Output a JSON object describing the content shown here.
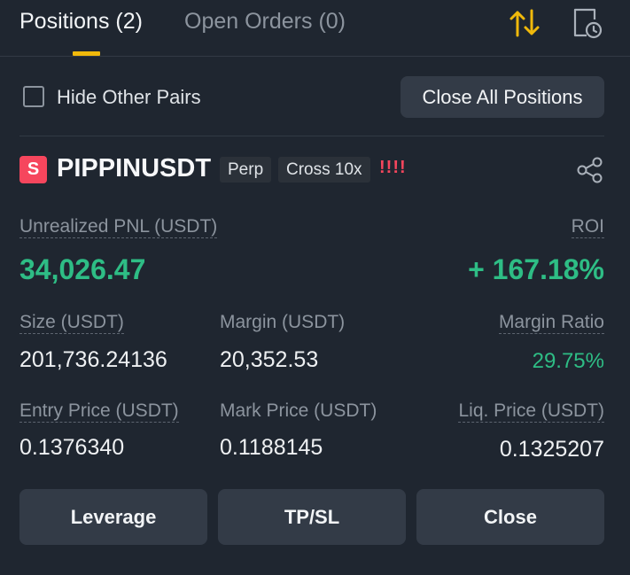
{
  "tabs": {
    "positions_label": "Positions (2)",
    "open_orders_label": "Open Orders (0)"
  },
  "header_icons": {
    "sort": "sort-arrows-icon",
    "history": "order-history-icon",
    "accent_color": "#f0b90b"
  },
  "filter": {
    "hide_other_pairs_label": "Hide Other Pairs",
    "hide_other_pairs_checked": false,
    "close_all_label": "Close All Positions"
  },
  "position": {
    "side_badge": "S",
    "symbol": "PIPPINUSDT",
    "tags": {
      "contract": "Perp",
      "margin_mode": "Cross 10x"
    },
    "risk_indicator": "!!!!",
    "unrealized_pnl_label": "Unrealized PNL (USDT)",
    "unrealized_pnl_value": "34,026.47",
    "roi_label": "ROI",
    "roi_value": "+ 167.18%",
    "size_label": "Size (USDT)",
    "size_value": "201,736.24136",
    "margin_label": "Margin (USDT)",
    "margin_value": "20,352.53",
    "margin_ratio_label": "Margin Ratio",
    "margin_ratio_value": "29.75%",
    "entry_price_label": "Entry Price (USDT)",
    "entry_price_value": "0.1376340",
    "mark_price_label": "Mark Price (USDT)",
    "mark_price_value": "0.1188145",
    "liq_price_label": "Liq. Price (USDT)",
    "liq_price_value": "0.1325207"
  },
  "actions": {
    "leverage_label": "Leverage",
    "tpsl_label": "TP/SL",
    "close_label": "Close"
  },
  "colors": {
    "background": "#1f2630",
    "profit_green": "#2ebd85",
    "short_red": "#f6465d"
  }
}
